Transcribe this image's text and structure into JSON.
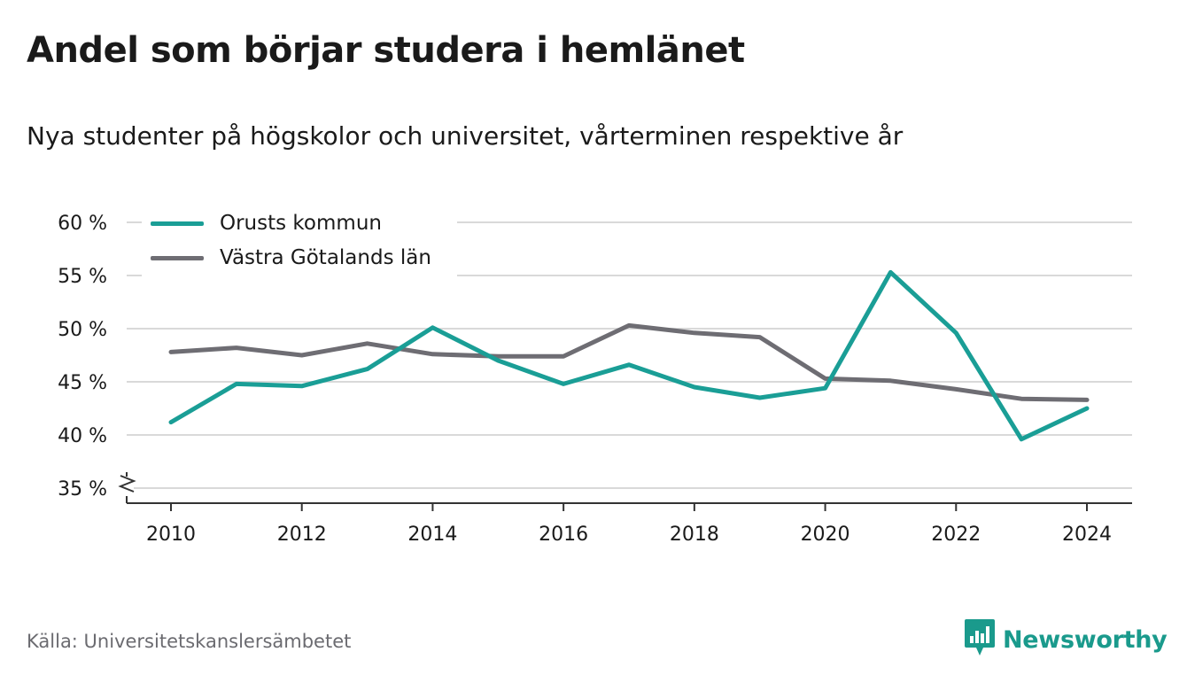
{
  "header": {
    "title": "Andel som börjar studera i hemlänet",
    "subtitle": "Nya studenter på högskolor och universitet, vårterminen respektive år"
  },
  "footer": {
    "source": "Källa: Universitetskanslersämbetet",
    "brand": "Newsworthy",
    "brand_icon": "bar-chart-speech-bubble-icon"
  },
  "colors": {
    "series_orust": "#1a9e96",
    "series_vg": "#6e6d73",
    "grid": "#d9d9d9",
    "axis": "#333333",
    "brand": "#1a9a8c"
  },
  "chart_data": {
    "type": "line",
    "x": [
      2010,
      2011,
      2012,
      2013,
      2014,
      2015,
      2016,
      2017,
      2018,
      2019,
      2020,
      2021,
      2022,
      2023,
      2024
    ],
    "series": [
      {
        "name": "Orusts kommun",
        "values": [
          41.2,
          44.8,
          44.6,
          46.2,
          50.1,
          47.0,
          44.8,
          46.6,
          44.5,
          43.5,
          44.4,
          55.3,
          49.6,
          39.6,
          42.5
        ]
      },
      {
        "name": "Västra Götalands län",
        "values": [
          47.8,
          48.2,
          47.5,
          48.6,
          47.6,
          47.4,
          47.4,
          50.3,
          49.6,
          49.2,
          45.3,
          45.1,
          44.3,
          43.4,
          43.3
        ]
      }
    ],
    "y_ticks": [
      "60 %",
      "55 %",
      "50 %",
      "45 %",
      "40 %",
      "35 %"
    ],
    "y_tick_values": [
      60,
      55,
      50,
      45,
      40,
      35
    ],
    "x_ticks": [
      "2010",
      "2012",
      "2014",
      "2016",
      "2018",
      "2020",
      "2022",
      "2024"
    ],
    "x_tick_values": [
      2010,
      2012,
      2014,
      2016,
      2018,
      2020,
      2022,
      2024
    ],
    "ylim": [
      35,
      60
    ],
    "xlim": [
      2010,
      2024
    ],
    "grid": true,
    "axis_break": true,
    "legend_position": "top-left"
  }
}
